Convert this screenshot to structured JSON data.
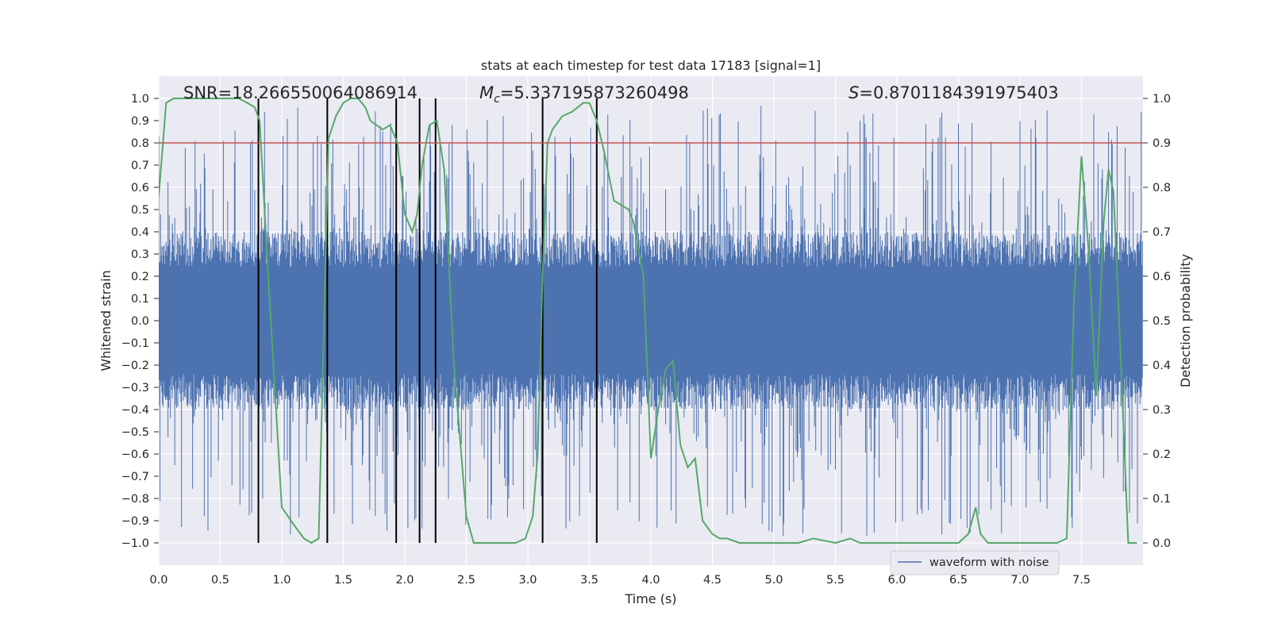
{
  "chart_data": {
    "type": "line",
    "title": "stats at each timestep for test data 17183 [signal=1]",
    "xlabel": "Time (s)",
    "ylabel_left": "Whitened strain",
    "ylabel_right": "Detection probability",
    "xlim": [
      0.0,
      8.0
    ],
    "ylim_left": [
      -1.1,
      1.1
    ],
    "ylim_right": [
      -0.05,
      1.05
    ],
    "x_ticks": [
      "0.0",
      "0.5",
      "1.0",
      "1.5",
      "2.0",
      "2.5",
      "3.0",
      "3.5",
      "4.0",
      "4.5",
      "5.0",
      "5.5",
      "6.0",
      "6.5",
      "7.0",
      "7.5"
    ],
    "y_left_ticks": [
      "1.0",
      "0.9",
      "0.8",
      "0.7",
      "0.6",
      "0.5",
      "0.4",
      "0.3",
      "0.2",
      "0.1",
      "0.0",
      "−0.1",
      "−0.2",
      "−0.3",
      "−0.4",
      "−0.5",
      "−0.6",
      "−0.7",
      "−0.8",
      "−0.9",
      "−1.0"
    ],
    "y_right_ticks": [
      "1.0",
      "0.9",
      "0.8",
      "0.7",
      "0.6",
      "0.5",
      "0.4",
      "0.3",
      "0.2",
      "0.1",
      "0.0"
    ],
    "annotations": {
      "snr": "SNR=18.266550064086914",
      "mc_symbol": "M",
      "mc_subscript": "c",
      "mc_value": "=5.337195873260498",
      "s_symbol": "S",
      "s_value": "=0.8701184391975403"
    },
    "legend": {
      "label": "waveform with noise",
      "position": "lower-right"
    },
    "threshold": 0.9,
    "vertical_lines_x": [
      0.81,
      1.37,
      1.93,
      2.12,
      2.25,
      3.12,
      3.56
    ],
    "series": [
      {
        "name": "waveform with noise",
        "color": "#4c72b0",
        "axis": "left",
        "description_ranges": {
          "core_amplitude": 0.4,
          "max_abs": 1.0
        }
      },
      {
        "name": "detection probability",
        "color": "#55a868",
        "axis": "right",
        "x": [
          0.0,
          0.06,
          0.12,
          0.2,
          0.3,
          0.5,
          0.65,
          0.72,
          0.78,
          0.82,
          0.9,
          1.0,
          1.1,
          1.18,
          1.24,
          1.3,
          1.38,
          1.44,
          1.5,
          1.56,
          1.62,
          1.68,
          1.72,
          1.82,
          1.88,
          1.94,
          2.0,
          2.06,
          2.1,
          2.14,
          2.2,
          2.26,
          2.32,
          2.4,
          2.5,
          2.56,
          2.62,
          2.7,
          2.8,
          2.9,
          2.98,
          3.04,
          3.08,
          3.12,
          3.16,
          3.2,
          3.28,
          3.36,
          3.45,
          3.5,
          3.56,
          3.62,
          3.7,
          3.82,
          3.86,
          3.94,
          4.0,
          4.06,
          4.12,
          4.18,
          4.24,
          4.3,
          4.36,
          4.42,
          4.5,
          4.56,
          4.62,
          4.72,
          4.9,
          5.0,
          5.2,
          5.32,
          5.5,
          5.62,
          5.7,
          5.8,
          5.95,
          6.1,
          6.3,
          6.5,
          6.58,
          6.64,
          6.68,
          6.74,
          6.8,
          6.92,
          7.1,
          7.3,
          7.38,
          7.44,
          7.5,
          7.56,
          7.62,
          7.68,
          7.72,
          7.76,
          7.8,
          7.88,
          7.95
        ],
        "values": [
          0.78,
          0.99,
          1.0,
          1.0,
          1.0,
          1.0,
          1.0,
          0.99,
          0.98,
          0.95,
          0.55,
          0.08,
          0.04,
          0.01,
          0.0,
          0.01,
          0.91,
          0.96,
          0.99,
          1.0,
          1.0,
          0.98,
          0.95,
          0.93,
          0.94,
          0.9,
          0.74,
          0.7,
          0.74,
          0.85,
          0.94,
          0.95,
          0.84,
          0.4,
          0.06,
          0.0,
          0.0,
          0.0,
          0.0,
          0.0,
          0.01,
          0.06,
          0.2,
          0.6,
          0.9,
          0.93,
          0.96,
          0.97,
          0.99,
          0.99,
          0.95,
          0.88,
          0.77,
          0.75,
          0.72,
          0.6,
          0.19,
          0.3,
          0.39,
          0.41,
          0.22,
          0.17,
          0.19,
          0.05,
          0.02,
          0.01,
          0.01,
          0.0,
          0.0,
          0.0,
          0.0,
          0.01,
          0.0,
          0.01,
          0.0,
          0.0,
          0.0,
          0.0,
          0.0,
          0.0,
          0.02,
          0.08,
          0.02,
          0.0,
          0.0,
          0.0,
          0.0,
          0.0,
          0.01,
          0.55,
          0.87,
          0.65,
          0.33,
          0.72,
          0.84,
          0.79,
          0.54,
          0.0,
          0.0
        ]
      },
      {
        "name": "threshold",
        "color": "#c44e52",
        "axis": "right",
        "x": [
          0.0,
          8.0
        ],
        "values": [
          0.9,
          0.9
        ]
      }
    ]
  }
}
